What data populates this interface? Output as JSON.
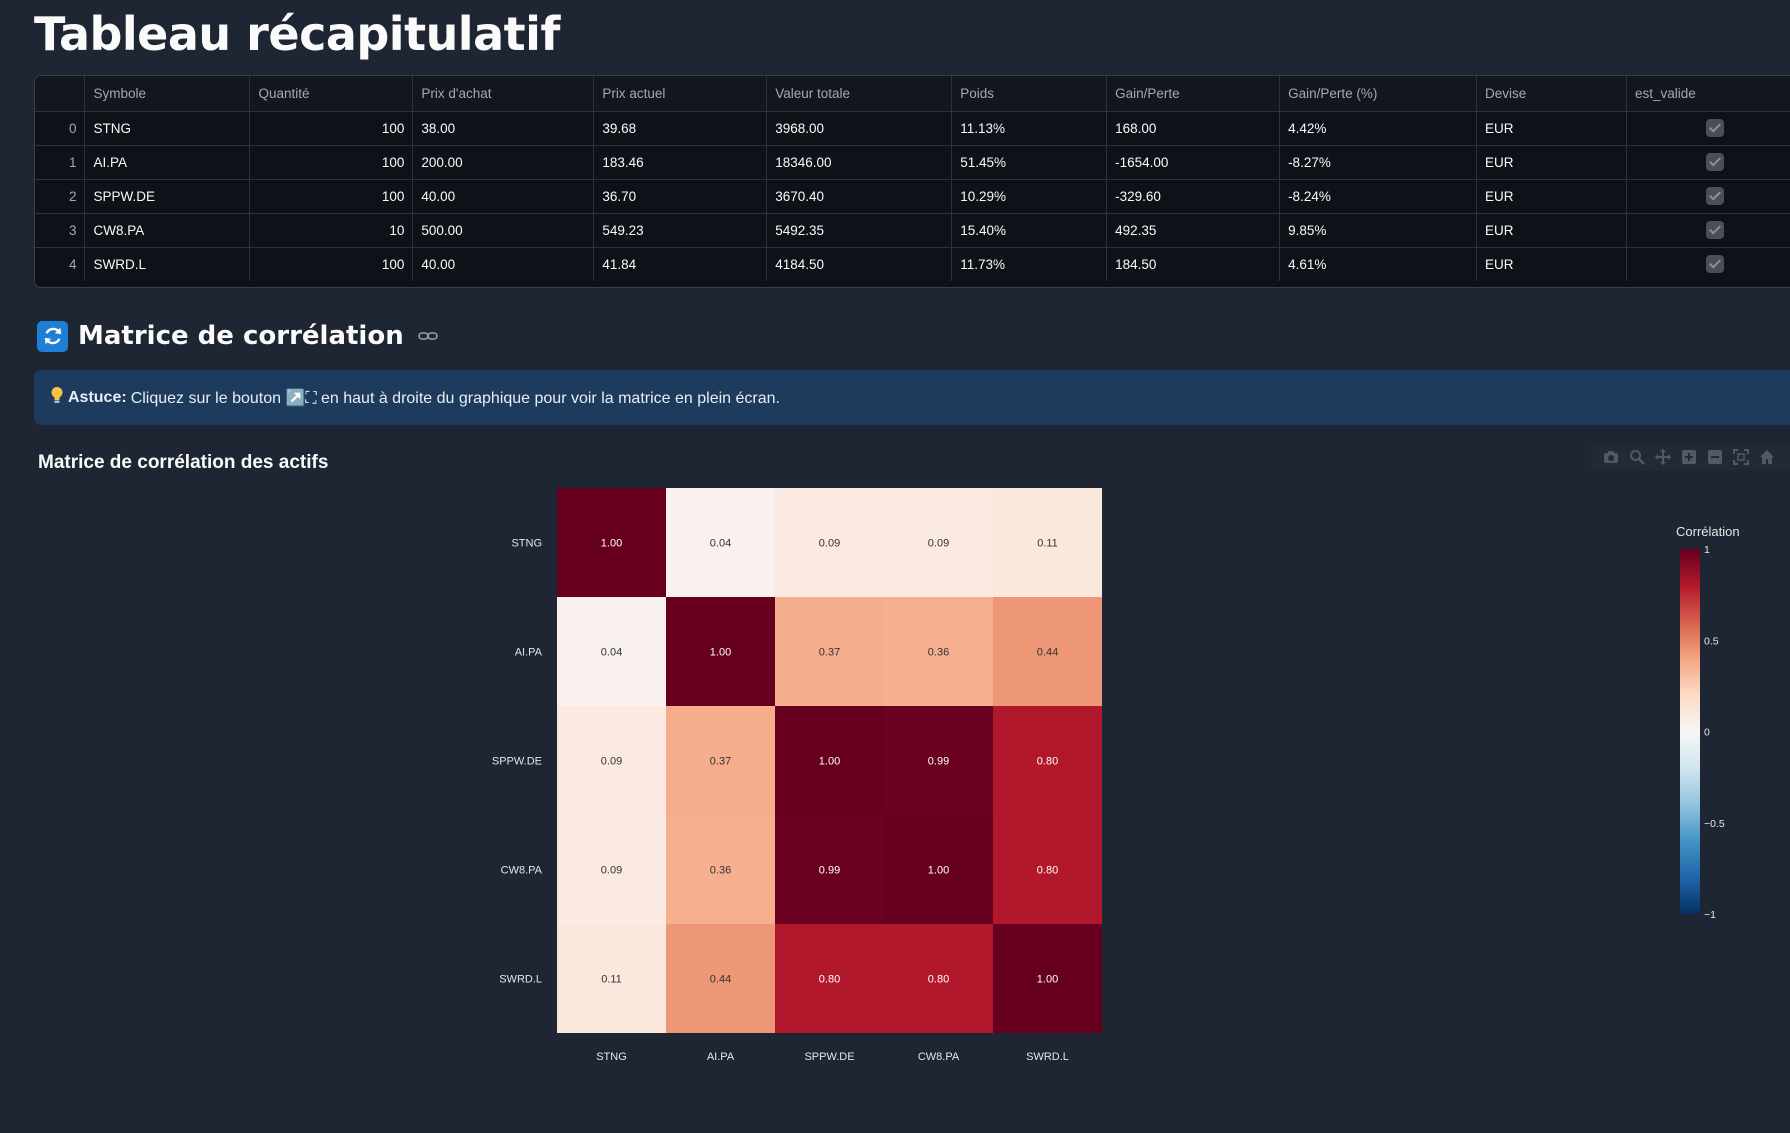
{
  "page": {
    "title": "Tableau récapitulatif"
  },
  "table": {
    "columns": [
      "",
      "Symbole",
      "Quantité",
      "Prix d'achat",
      "Prix actuel",
      "Valeur totale",
      "Poids",
      "Gain/Perte",
      "Gain/Perte (%)",
      "Devise",
      "est_valide"
    ],
    "rows": [
      {
        "index": "0",
        "symbole": "STNG",
        "quantite": "100",
        "prix_achat": "38.00",
        "prix_actuel": "39.68",
        "valeur_totale": "3968.00",
        "poids": "11.13%",
        "gain_perte": "168.00",
        "gain_perte_pct": "4.42%",
        "devise": "EUR",
        "est_valide": true
      },
      {
        "index": "1",
        "symbole": "AI.PA",
        "quantite": "100",
        "prix_achat": "200.00",
        "prix_actuel": "183.46",
        "valeur_totale": "18346.00",
        "poids": "51.45%",
        "gain_perte": "-1654.00",
        "gain_perte_pct": "-8.27%",
        "devise": "EUR",
        "est_valide": true
      },
      {
        "index": "2",
        "symbole": "SPPW.DE",
        "quantite": "100",
        "prix_achat": "40.00",
        "prix_actuel": "36.70",
        "valeur_totale": "3670.40",
        "poids": "10.29%",
        "gain_perte": "-329.60",
        "gain_perte_pct": "-8.24%",
        "devise": "EUR",
        "est_valide": true
      },
      {
        "index": "3",
        "symbole": "CW8.PA",
        "quantite": "10",
        "prix_achat": "500.00",
        "prix_actuel": "549.23",
        "valeur_totale": "5492.35",
        "poids": "15.40%",
        "gain_perte": "492.35",
        "gain_perte_pct": "9.85%",
        "devise": "EUR",
        "est_valide": true
      },
      {
        "index": "4",
        "symbole": "SWRD.L",
        "quantite": "100",
        "prix_achat": "40.00",
        "prix_actuel": "41.84",
        "valeur_totale": "4184.50",
        "poids": "11.73%",
        "gain_perte": "184.50",
        "gain_perte_pct": "4.61%",
        "devise": "EUR",
        "est_valide": true
      }
    ]
  },
  "section": {
    "title": "Matrice de corrélation",
    "icon": "refresh-icon"
  },
  "info": {
    "icon": "lightbulb-icon",
    "label": "Astuce:",
    "text": "Cliquez sur le bouton ↗️⛶ en haut à droite du graphique pour voir la matrice en plein écran."
  },
  "chart_data": {
    "type": "heatmap",
    "title": "Matrice de corrélation des actifs",
    "x": [
      "STNG",
      "AI.PA",
      "SPPW.DE",
      "CW8.PA",
      "SWRD.L"
    ],
    "y": [
      "STNG",
      "AI.PA",
      "SPPW.DE",
      "CW8.PA",
      "SWRD.L"
    ],
    "z": [
      [
        1.0,
        0.04,
        0.09,
        0.09,
        0.11
      ],
      [
        0.04,
        1.0,
        0.37,
        0.36,
        0.44
      ],
      [
        0.09,
        0.37,
        1.0,
        0.99,
        0.8
      ],
      [
        0.09,
        0.36,
        0.99,
        1.0,
        0.8
      ],
      [
        0.11,
        0.44,
        0.8,
        0.8,
        1.0
      ]
    ],
    "text_format": "0.00",
    "colorscale": "RdBu reversed",
    "zmin": -1,
    "zmax": 1,
    "colorbar": {
      "title": "Corrélation",
      "ticks": [
        1,
        0.5,
        0,
        -0.5,
        -1
      ],
      "tick_labels": [
        "1",
        "0.5",
        "0",
        "−0.5",
        "−1"
      ]
    }
  },
  "modebar": {
    "buttons": [
      "camera-icon",
      "zoom-icon",
      "pan-icon",
      "zoom-in-icon",
      "zoom-out-icon",
      "autoscale-icon",
      "home-icon"
    ]
  }
}
